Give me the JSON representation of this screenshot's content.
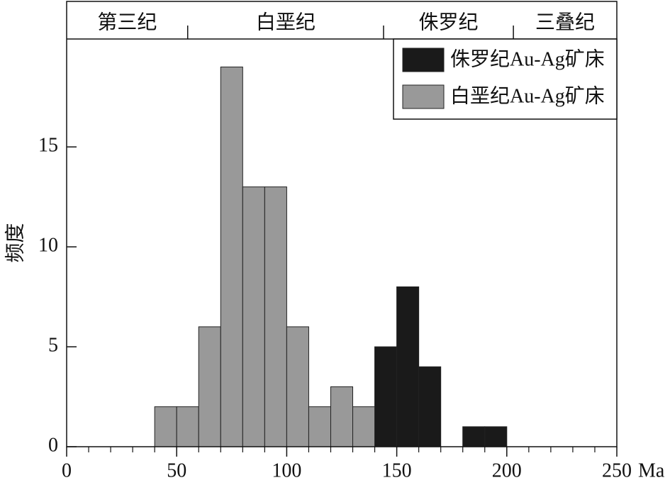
{
  "chart_data": {
    "type": "histogram",
    "ylabel": "频度",
    "xlabel": "Ma",
    "xlim": [
      0,
      250
    ],
    "xticks": [
      0,
      50,
      100,
      150,
      200,
      250
    ],
    "x_minor_ticks": [
      10,
      20,
      30,
      40,
      60,
      70,
      80,
      90,
      110,
      120,
      130,
      140,
      160,
      170,
      180,
      190,
      210,
      220,
      230,
      240
    ],
    "ylim": [
      0,
      20.4
    ],
    "yticks": [
      0,
      5,
      10,
      15
    ],
    "periods": [
      "第三纪",
      "白垩纪",
      "侏罗纪",
      "三叠纪"
    ],
    "period_boundaries": [
      55,
      144,
      203
    ],
    "legend": "upper right",
    "series": [
      {
        "name": "侏罗纪Au-Ag矿床",
        "color": "#1a1a1a",
        "bins": [
          140,
          150,
          160,
          170,
          180,
          190,
          200
        ],
        "values": [
          5,
          8,
          4,
          0,
          1,
          1
        ]
      },
      {
        "name": "白垩纪Au-Ag矿床",
        "color": "#999999",
        "bins": [
          40,
          50,
          60,
          70,
          80,
          90,
          100,
          110,
          120,
          130,
          140
        ],
        "values": [
          2,
          2,
          6,
          19,
          13,
          13,
          6,
          2,
          3,
          2
        ]
      }
    ]
  }
}
